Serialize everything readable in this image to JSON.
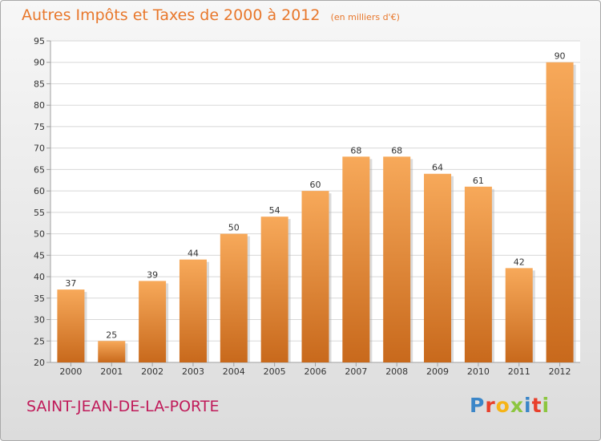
{
  "title": "Autres Impôts et Taxes de 2000 à 2012",
  "subtitle": "(en milliers d'€)",
  "location": "SAINT-JEAN-DE-LA-PORTE",
  "brand": {
    "name": "Proxiti",
    "letters": [
      {
        "ch": "P",
        "color": "#3b86c8"
      },
      {
        "ch": "r",
        "color": "#e8402b"
      },
      {
        "ch": "o",
        "color": "#f6b417"
      },
      {
        "ch": "x",
        "color": "#8cc63f"
      },
      {
        "ch": "i",
        "color": "#3b86c8"
      },
      {
        "ch": "t",
        "color": "#e8402b"
      },
      {
        "ch": "i",
        "color": "#8cc63f"
      }
    ]
  },
  "colors": {
    "title": "#e8772b",
    "location": "#c01b5a",
    "bar_top": "#f7a95a",
    "bar_bottom": "#c8691c",
    "grid": "#d8d8d8",
    "axis": "#a0a0a0",
    "text": "#333333"
  },
  "chart_data": {
    "type": "bar",
    "categories": [
      "2000",
      "2001",
      "2002",
      "2003",
      "2004",
      "2005",
      "2006",
      "2007",
      "2008",
      "2009",
      "2010",
      "2011",
      "2012"
    ],
    "values": [
      37,
      25,
      39,
      44,
      50,
      54,
      60,
      68,
      68,
      64,
      61,
      42,
      90
    ],
    "ylim": [
      20,
      95
    ],
    "yticks": [
      20,
      25,
      30,
      35,
      40,
      45,
      50,
      55,
      60,
      65,
      70,
      75,
      80,
      85,
      90,
      95
    ],
    "grid": true,
    "data_labels": true
  }
}
